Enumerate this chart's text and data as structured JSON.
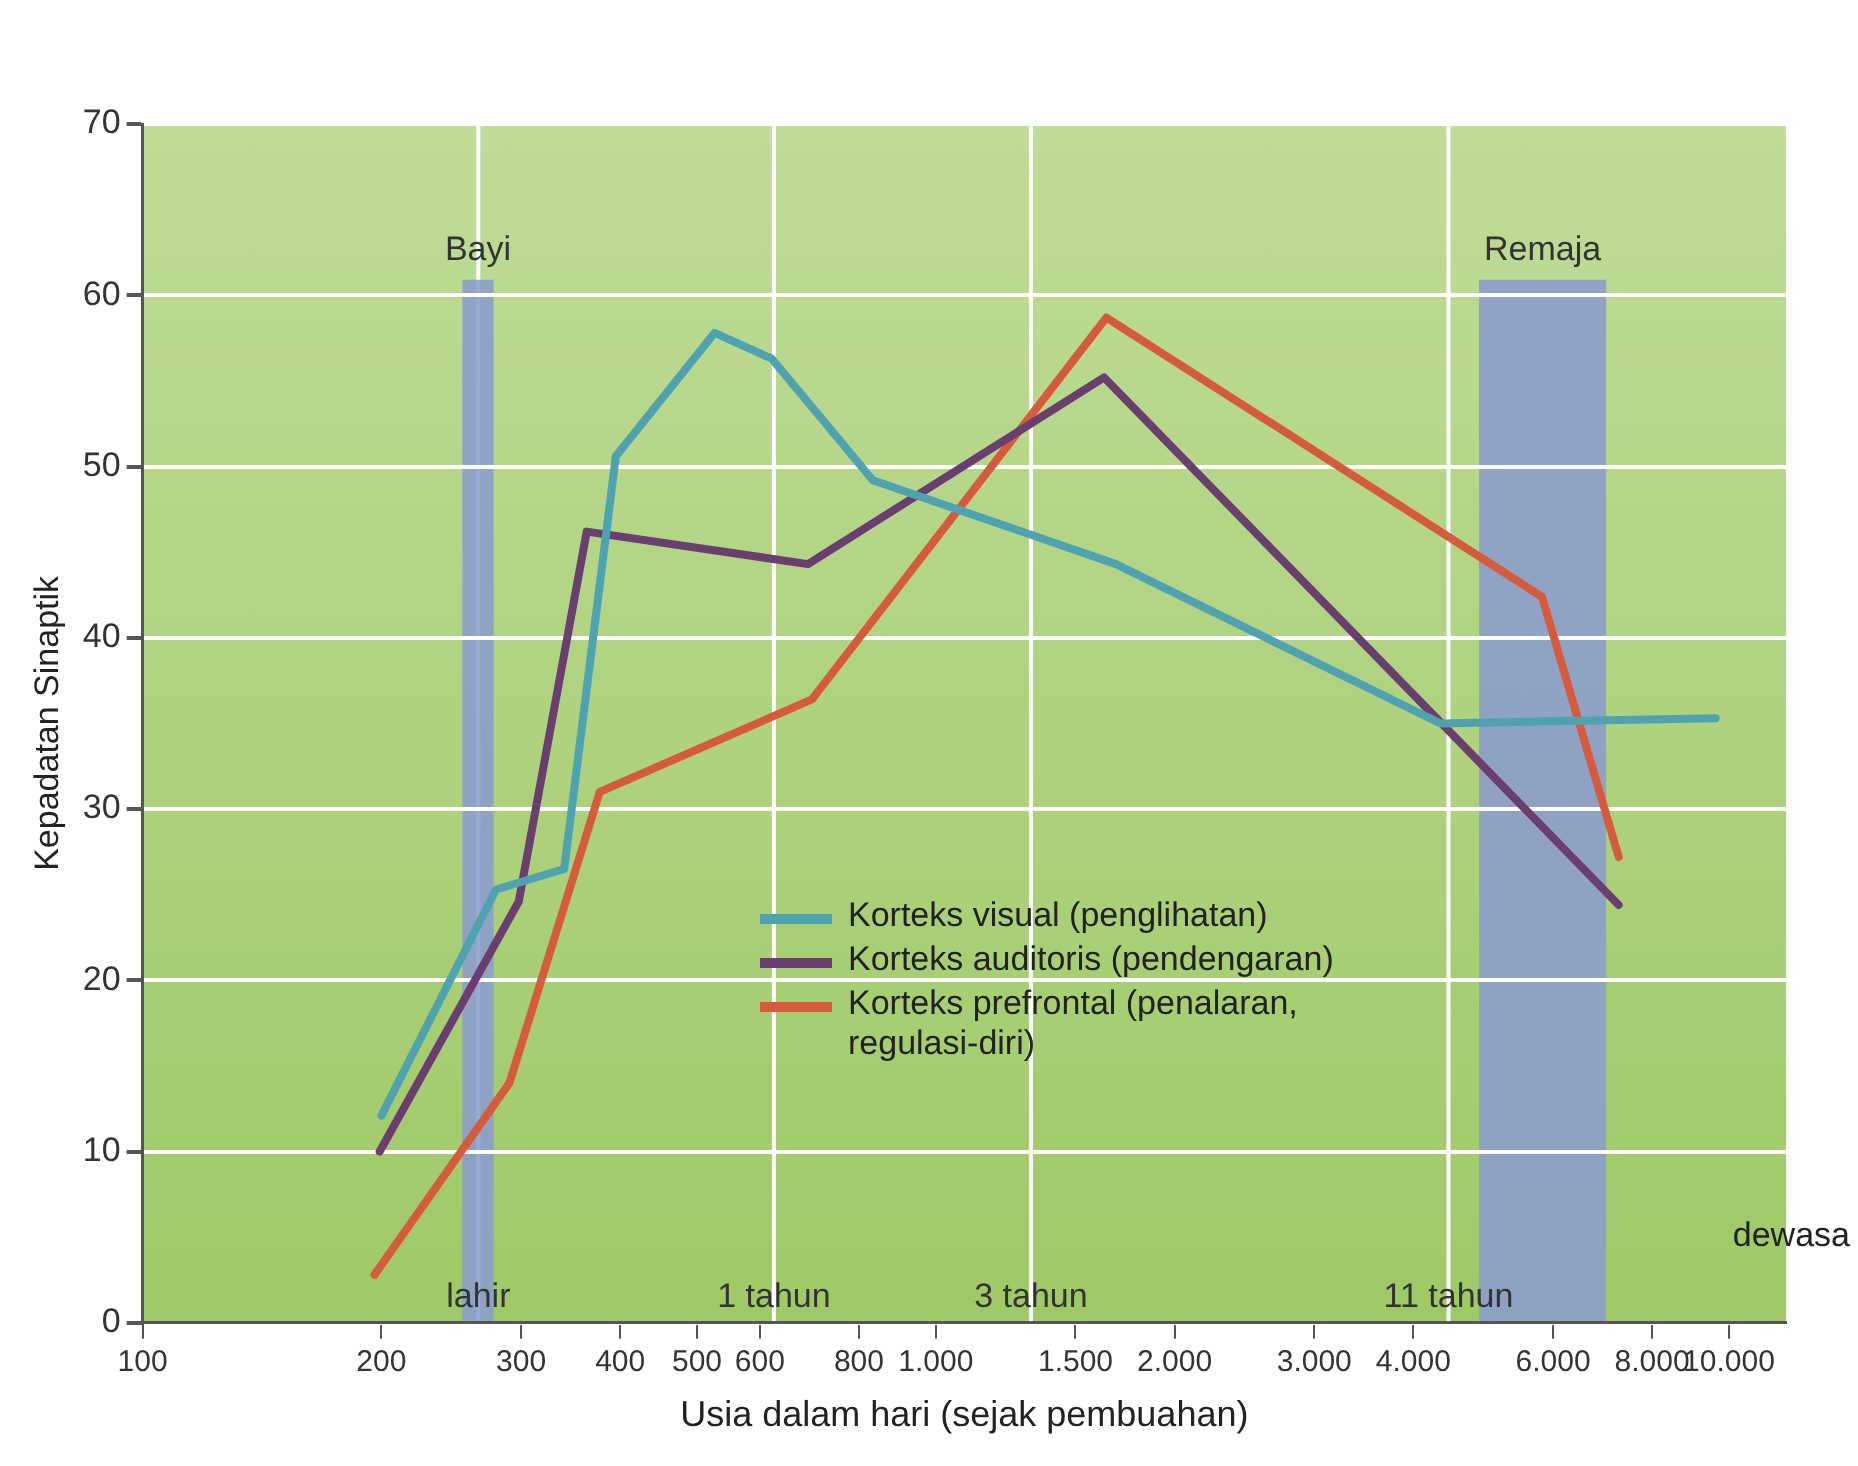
{
  "chart_data": {
    "type": "line",
    "xlabel": "Usia dalam hari (sejak pembuahan)",
    "ylabel": "Kepadatan Sinaptik",
    "log": "x",
    "xlim": [
      100,
      11800
    ],
    "xticks": [
      100,
      200,
      300,
      400,
      500,
      600,
      800,
      {
        "value": 1000,
        "label": "1.000"
      },
      {
        "value": 1500,
        "label": "1.500"
      },
      {
        "value": 2000,
        "label": "2.000"
      },
      {
        "value": 3000,
        "label": "3.000"
      },
      {
        "value": 4000,
        "label": "4.000"
      },
      {
        "value": 6000,
        "label": "6.000"
      },
      {
        "value": 8000,
        "label": "8.000"
      },
      {
        "value": 10000,
        "label": "10.000"
      }
    ],
    "ylim": [
      0,
      70
    ],
    "yticks": [
      0,
      10,
      20,
      30,
      40,
      50,
      60,
      70
    ],
    "grid": "y",
    "legend": "bottom",
    "marker": "none",
    "line_style": "solid",
    "series": [
      {
        "name": "Korteks visual (penglihatan)",
        "color": "#4fa3b0",
        "x": [
          200,
          279,
          340,
          395,
          526,
          621,
          833,
          1687,
          4325,
          9620
        ],
        "values": [
          12.1,
          25.3,
          26.5,
          50.6,
          57.8,
          56.3,
          49.2,
          44.3,
          35.0,
          35.3
        ]
      },
      {
        "name": "Korteks auditoris (pendengaran)",
        "color": "#6a3e6e",
        "x": [
          199,
          298,
          363,
          690,
          1630,
          7260
        ],
        "values": [
          10.0,
          24.6,
          46.2,
          44.3,
          55.2,
          24.4
        ]
      },
      {
        "name": "Korteks prefrontal (penalaran, regulasi-diri)",
        "color": "#d65a3c",
        "x": [
          196,
          290,
          377,
          698,
          1641,
          5810,
          7260
        ],
        "values": [
          2.8,
          14.0,
          31.0,
          36.4,
          58.7,
          42.4,
          27.2
        ]
      }
    ],
    "bands": [
      {
        "axis": "x",
        "from": 253,
        "to": 277,
        "label": "Bayi",
        "color": "#8a9ad0"
      },
      {
        "axis": "x",
        "from": 4840,
        "to": 7000,
        "label": "Remaja",
        "color": "#8a9ad0"
      }
    ],
    "ref_lines": [
      {
        "axis": "x",
        "value": 265,
        "label": "lahir",
        "color": "#ffffff"
      },
      {
        "axis": "x",
        "value": 625,
        "label": "1 tahun",
        "color": "#ffffff"
      },
      {
        "axis": "x",
        "value": 1318,
        "label": "3 tahun",
        "color": "#ffffff"
      },
      {
        "axis": "x",
        "value": 4430,
        "label": "11 tahun",
        "color": "#ffffff"
      }
    ],
    "annotations": [
      "dewasa"
    ]
  }
}
